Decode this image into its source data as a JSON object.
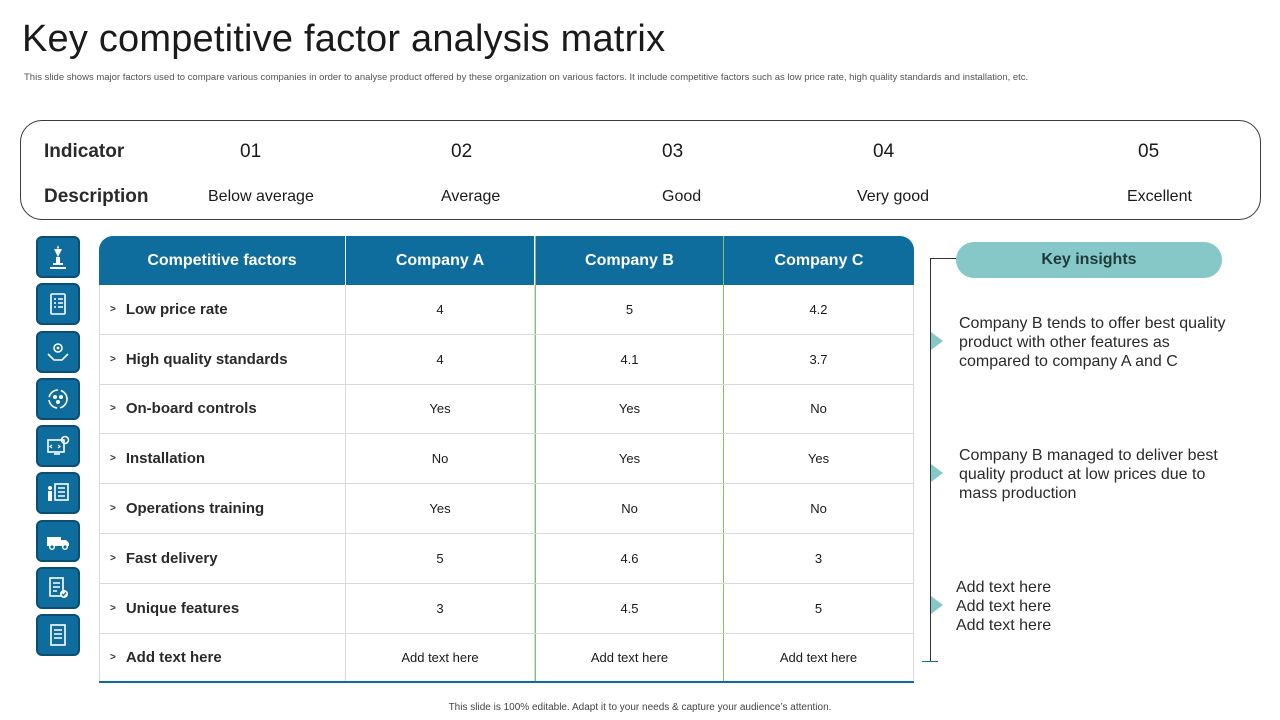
{
  "title": "Key competitive factor analysis matrix",
  "subtitle": "This slide shows major factors used to compare various companies in order to analyse product offered by these organization on various factors. It include competitive factors such as low price rate, high quality standards and installation, etc.",
  "legend": {
    "indicator_label": "Indicator",
    "description_label": "Description",
    "items": [
      {
        "num": "01",
        "desc": "Below average"
      },
      {
        "num": "02",
        "desc": "Average"
      },
      {
        "num": "03",
        "desc": "Good"
      },
      {
        "num": "04",
        "desc": "Very good"
      },
      {
        "num": "05",
        "desc": "Excellent"
      }
    ]
  },
  "icons": [
    "trophy-icon",
    "checklist-icon",
    "hands-gear-icon",
    "cycle-icon",
    "monitor-gear-icon",
    "presenter-icon",
    "delivery-truck-icon",
    "document-check-icon",
    "list-document-icon"
  ],
  "table": {
    "headers": [
      "Competitive factors",
      "Company A",
      "Company B",
      "Company C"
    ],
    "rows": [
      {
        "factor": "Low price rate",
        "a": "4",
        "b": "5",
        "c": "4.2"
      },
      {
        "factor": "High quality standards",
        "a": "4",
        "b": "4.1",
        "c": "3.7"
      },
      {
        "factor": "On-board controls",
        "a": "Yes",
        "b": "Yes",
        "c": "No"
      },
      {
        "factor": "Installation",
        "a": "No",
        "b": "Yes",
        "c": "Yes"
      },
      {
        "factor": "Operations training",
        "a": "Yes",
        "b": "No",
        "c": "No"
      },
      {
        "factor": "Fast delivery",
        "a": "5",
        "b": "4.6",
        "c": "3"
      },
      {
        "factor": "Unique features",
        "a": "3",
        "b": "4.5",
        "c": "5"
      },
      {
        "factor": "Add text here",
        "a": "Add text here",
        "b": "Add text here",
        "c": "Add text here"
      }
    ]
  },
  "insights": {
    "label": "Key insights",
    "items": [
      "Company B tends to offer best quality product with other features as compared to company A and C",
      "Company B managed to deliver best quality product at low prices due to mass production"
    ],
    "placeholder_lines": [
      "Add text here",
      "Add text here",
      "Add text here"
    ]
  },
  "colors": {
    "primary": "#0e6d9c",
    "accent": "#86c8c8",
    "highlight": "#7dc46b"
  },
  "footer": "This slide is 100% editable. Adapt it to your needs & capture your audience’s attention."
}
